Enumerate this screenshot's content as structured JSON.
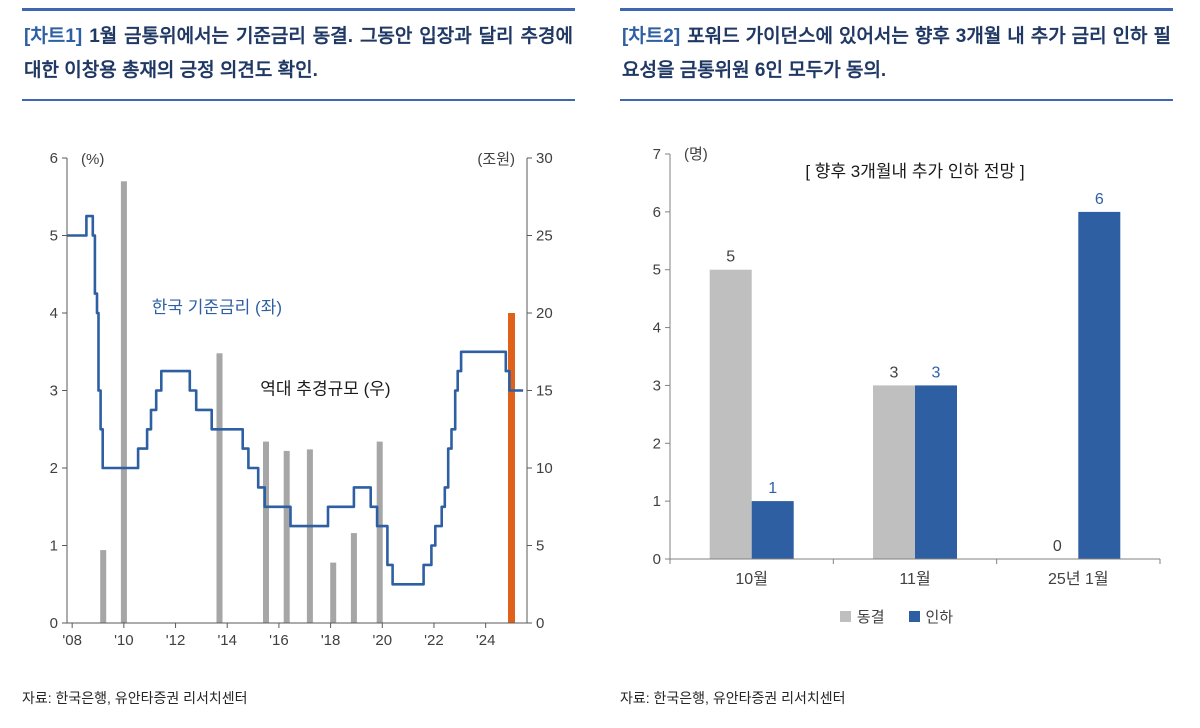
{
  "theme": {
    "accent_line": "#3f67b1",
    "title_color": "#203864",
    "tag_color": "#2e5fa3"
  },
  "charts": [
    {
      "tag": "[차트1]",
      "title": "1월 금통위에서는 기준금리 동결. 그동안 입장과 달리 추경에 대한 이창용 총재의 긍정 의견도 확인.",
      "source": "자료: 한국은행, 유안타증권 리서치센터"
    },
    {
      "tag": "[차트2]",
      "title": "포워드 가이던스에 있어서는 향후 3개월 내 추가 금리 인하 필요성을 금통위원 6인 모두가 동의.",
      "source": "자료: 한국은행, 유안타증권 리서치센터"
    }
  ],
  "chart_data": [
    {
      "type": "line",
      "subtype": "step-line with bars (dual axis)",
      "left_axis": {
        "label": "(%)",
        "min": 0,
        "max": 6,
        "step": 1
      },
      "right_axis": {
        "label": "(조원)",
        "min": 0,
        "max": 30,
        "step": 5
      },
      "x_axis": {
        "min": 2007.8,
        "max": 2025.6,
        "ticks": [
          {
            "year": 2008,
            "label": "'08"
          },
          {
            "year": 2010,
            "label": "'10"
          },
          {
            "year": 2012,
            "label": "'12"
          },
          {
            "year": 2014,
            "label": "'14"
          },
          {
            "year": 2016,
            "label": "'16"
          },
          {
            "year": 2018,
            "label": "'18"
          },
          {
            "year": 2020,
            "label": "'20"
          },
          {
            "year": 2022,
            "label": "'22"
          },
          {
            "year": 2024,
            "label": "'24"
          }
        ]
      },
      "colors": {
        "line": "#2e5fa3",
        "bar": "#a6a6a6",
        "bar_highlight": "#e0611a"
      },
      "line_name": "한국 기준금리 (좌)",
      "line_steps": [
        [
          2007.8,
          5.0
        ],
        [
          2008.55,
          5.25
        ],
        [
          2008.8,
          5.0
        ],
        [
          2008.88,
          4.25
        ],
        [
          2008.96,
          4.0
        ],
        [
          2009.02,
          3.0
        ],
        [
          2009.1,
          2.5
        ],
        [
          2009.18,
          2.0
        ],
        [
          2010.55,
          2.25
        ],
        [
          2010.9,
          2.5
        ],
        [
          2011.05,
          2.75
        ],
        [
          2011.25,
          3.0
        ],
        [
          2011.45,
          3.25
        ],
        [
          2012.55,
          3.0
        ],
        [
          2012.8,
          2.75
        ],
        [
          2013.4,
          2.5
        ],
        [
          2014.6,
          2.25
        ],
        [
          2014.82,
          2.0
        ],
        [
          2015.2,
          1.75
        ],
        [
          2015.45,
          1.5
        ],
        [
          2016.45,
          1.25
        ],
        [
          2017.9,
          1.5
        ],
        [
          2018.9,
          1.75
        ],
        [
          2019.55,
          1.5
        ],
        [
          2019.8,
          1.25
        ],
        [
          2020.2,
          0.75
        ],
        [
          2020.4,
          0.5
        ],
        [
          2021.6,
          0.75
        ],
        [
          2021.9,
          1.0
        ],
        [
          2022.05,
          1.25
        ],
        [
          2022.3,
          1.5
        ],
        [
          2022.42,
          1.75
        ],
        [
          2022.55,
          2.25
        ],
        [
          2022.68,
          2.5
        ],
        [
          2022.82,
          3.0
        ],
        [
          2022.92,
          3.25
        ],
        [
          2023.05,
          3.5
        ],
        [
          2024.78,
          3.25
        ],
        [
          2024.92,
          3.0
        ],
        [
          2025.45,
          3.0
        ]
      ],
      "bars_name": "역대 추경규모 (우)",
      "bars": [
        {
          "year": 2009.2,
          "value": 4.7
        },
        {
          "year": 2010.0,
          "value": 28.5
        },
        {
          "year": 2013.7,
          "value": 17.4
        },
        {
          "year": 2015.5,
          "value": 11.7
        },
        {
          "year": 2016.3,
          "value": 11.1
        },
        {
          "year": 2017.2,
          "value": 11.2
        },
        {
          "year": 2018.1,
          "value": 3.9
        },
        {
          "year": 2018.9,
          "value": 5.8
        },
        {
          "year": 2019.9,
          "value": 11.7
        },
        {
          "year": 2025.0,
          "value": 20.0,
          "highlight": true
        }
      ],
      "annotations": [
        {
          "text": "한국 기준금리 (좌)",
          "year": 2013.6,
          "value": 4.0,
          "color": "#2e5fa3"
        },
        {
          "text": "역대 추경규모 (우)",
          "year": 2017.8,
          "value": 2.95,
          "color": "#1a1a1a"
        }
      ]
    },
    {
      "type": "bar",
      "inner_title": "[ 향후 3개월내 추가 인하 전망 ]",
      "y_axis": {
        "label": "(명)",
        "min": 0,
        "max": 7,
        "step": 1
      },
      "categories": [
        "10월",
        "11월",
        "25년 1월"
      ],
      "series": [
        {
          "name": "동결",
          "color": "#bfbfbf",
          "label_color": "#404040",
          "values": [
            5,
            3,
            0
          ]
        },
        {
          "name": "인하",
          "color": "#2e5fa3",
          "label_color": "#2e5fa3",
          "values": [
            1,
            3,
            6
          ]
        }
      ],
      "legend_position": "bottom"
    }
  ]
}
